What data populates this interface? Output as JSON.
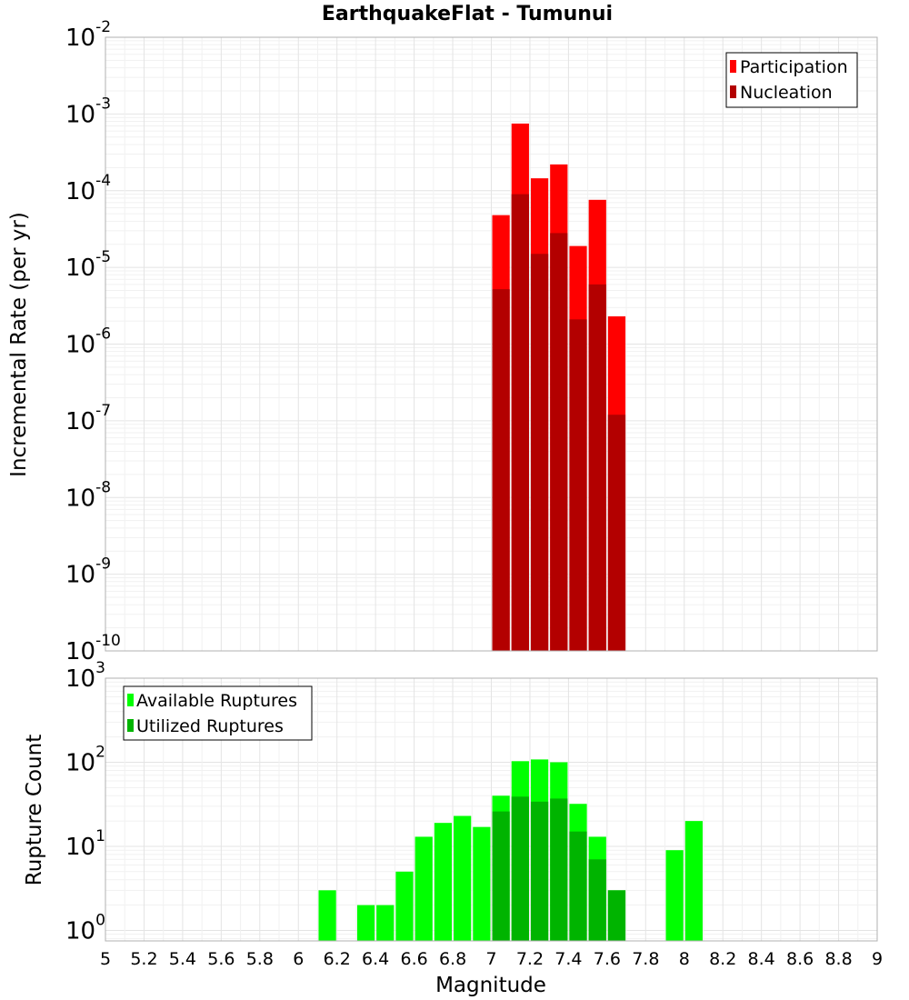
{
  "chart_data": [
    {
      "type": "bar",
      "title": "EarthquakeFlat - Tumunui",
      "xlabel": "",
      "ylabel": "Incremental Rate (per yr)",
      "xlim": [
        5,
        9
      ],
      "ylim": [
        1e-10,
        0.01
      ],
      "yscale": "log",
      "ytick_exponents": [
        "-10",
        "-9",
        "-8",
        "-7",
        "-6",
        "-5",
        "-4",
        "-3",
        "-2"
      ],
      "grid": true,
      "legend": "top-right",
      "bin_width": 0.1,
      "x": [
        7.05,
        7.15,
        7.25,
        7.35,
        7.45,
        7.55,
        7.65
      ],
      "series": [
        {
          "name": "Participation",
          "color": "#ff0000",
          "values": [
            4.8e-05,
            0.00075,
            0.000145,
            0.00022,
            1.9e-05,
            7.6e-05,
            2.3e-06
          ]
        },
        {
          "name": "Nucleation",
          "color": "#b30000",
          "values": [
            5.2e-06,
            9e-05,
            1.5e-05,
            2.8e-05,
            2.1e-06,
            6e-06,
            1.2e-07
          ]
        }
      ]
    },
    {
      "type": "bar",
      "title": "",
      "xlabel": "Magnitude",
      "ylabel": "Rupture Count",
      "xlim": [
        5,
        9
      ],
      "ylim": [
        0.75,
        1000
      ],
      "yscale": "log",
      "ytick_exponents": [
        "0",
        "1",
        "2",
        "3"
      ],
      "xticks": [
        "5",
        "5.2",
        "5.4",
        "5.6",
        "5.8",
        "6",
        "6.2",
        "6.4",
        "6.6",
        "6.8",
        "7",
        "7.2",
        "7.4",
        "7.6",
        "7.8",
        "8",
        "8.2",
        "8.4",
        "8.6",
        "8.8",
        "9"
      ],
      "grid": true,
      "legend": "top-left",
      "bin_width": 0.1,
      "series": [
        {
          "name": "Available Ruptures",
          "color": "#00ff00",
          "x": [
            6.15,
            6.35,
            6.45,
            6.55,
            6.65,
            6.75,
            6.85,
            6.95,
            7.05,
            7.15,
            7.25,
            7.35,
            7.45,
            7.55,
            7.65,
            7.95,
            8.05
          ],
          "values": [
            3,
            2,
            2,
            5,
            13,
            19,
            23,
            17,
            40,
            103,
            108,
            100,
            32,
            13,
            3,
            9,
            20
          ]
        },
        {
          "name": "Utilized Ruptures",
          "color": "#00b400",
          "x": [
            7.05,
            7.15,
            7.25,
            7.35,
            7.45,
            7.55,
            7.65
          ],
          "values": [
            26,
            39,
            34,
            37,
            15,
            7,
            3
          ]
        }
      ]
    }
  ]
}
